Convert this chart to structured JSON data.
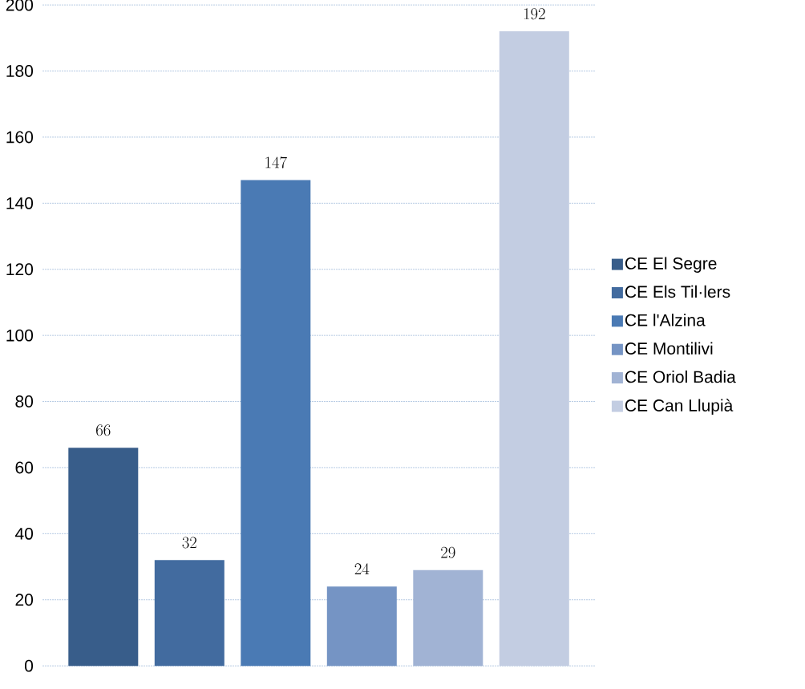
{
  "chart_data": {
    "type": "bar",
    "categories": [
      null
    ],
    "series": [
      {
        "name": "CE El Segre",
        "color": "#385d8a",
        "values": [
          66
        ]
      },
      {
        "name": "CE Els Til·lers",
        "color": "#426b9f",
        "values": [
          32
        ]
      },
      {
        "name": "CE l'Alzina",
        "color": "#4a7ab4",
        "values": [
          147
        ]
      },
      {
        "name": "CE Montilivi",
        "color": "#7594c4",
        "values": [
          24
        ]
      },
      {
        "name": "CE Oriol Badia",
        "color": "#a1b3d4",
        "values": [
          29
        ]
      },
      {
        "name": "CE Can Llupià",
        "color": "#c3cde2",
        "values": [
          192
        ]
      }
    ],
    "ylim": [
      0,
      200
    ],
    "yticks": [
      0,
      20,
      40,
      60,
      80,
      100,
      120,
      140,
      160,
      180,
      200
    ],
    "grid": "y",
    "legend": "right",
    "data_labels": true
  }
}
